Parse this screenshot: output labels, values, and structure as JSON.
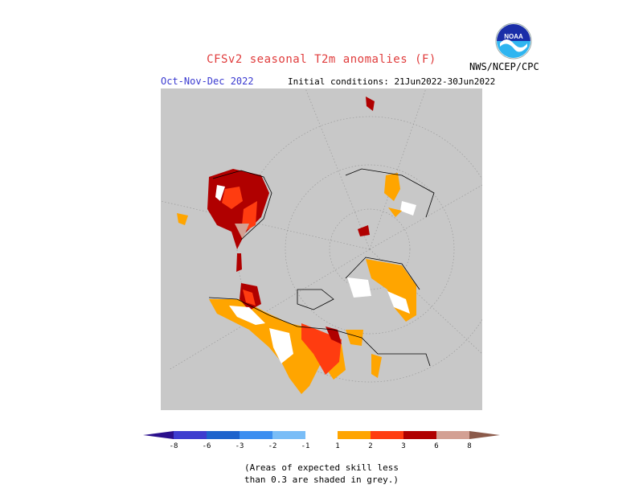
{
  "header": {
    "title": "CFSv2 seasonal T2m anomalies (F)",
    "season": "Oct-Nov-Dec 2022",
    "initial_conditions": "Initial conditions: 21Jun2022-30Jun2022",
    "agency": "NWS/NCEP/CPC",
    "logo_text": "NOAA"
  },
  "legend": {
    "unit": "F",
    "ticks": [
      "-8",
      "-6",
      "-3",
      "-2",
      "-1",
      "1",
      "2",
      "3",
      "6",
      "8"
    ],
    "colors": {
      "below_minus8": "#2a0f8c",
      "minus8_minus6": "#3d3ccf",
      "minus6_minus3": "#1e63cc",
      "minus3_minus2": "#3b8ef0",
      "minus2_minus1": "#79bdf7",
      "neutral": "#ffffff",
      "plus1_plus2": "#ffa500",
      "plus2_plus3": "#ff3c10",
      "plus3_plus6": "#b00000",
      "plus6_plus8": "#d3a093",
      "above_plus8": "#8b5a4a"
    }
  },
  "map": {
    "projection": "polar stereographic (north)",
    "background_color": "#c8c8c8",
    "low_skill_color": "#c8c8c8"
  },
  "footnote": {
    "line1": "(Areas of expected skill less",
    "line2": "than 0.3 are shaded in grey.)"
  }
}
